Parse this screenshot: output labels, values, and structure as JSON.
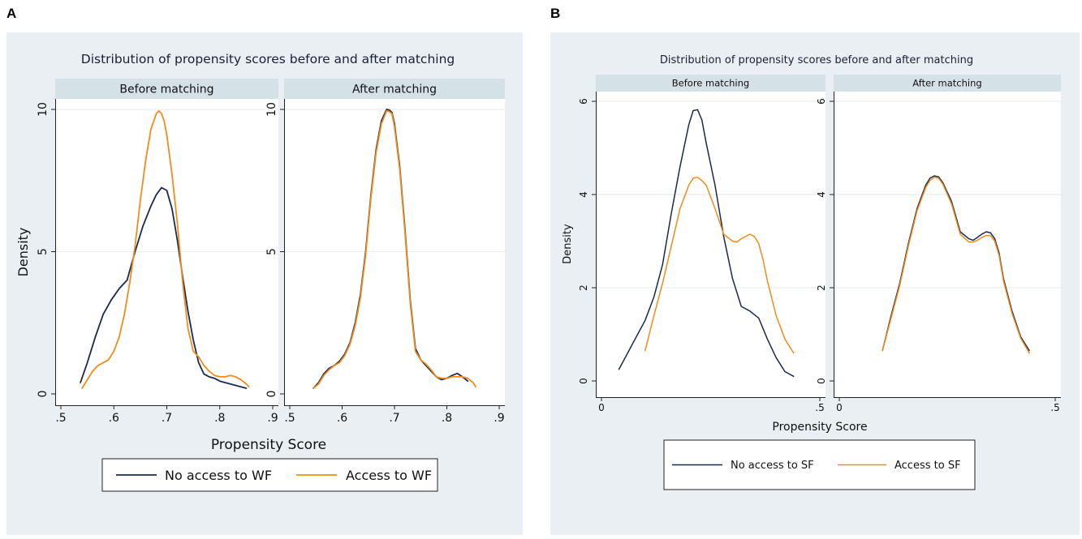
{
  "colors": {
    "blue": "#1a2a4f",
    "orange": "#f08c1c",
    "bg": "#e9eff2",
    "strip": "#d4e1e7",
    "grid": "#ffffff"
  },
  "chart_data": [
    {
      "panel_label": "A",
      "type": "line",
      "title": "Distribution of propensity scores before and after matching",
      "xlabel": "Propensity Score",
      "ylabel": "Density",
      "xlim": [
        0.5,
        0.9
      ],
      "ylim": [
        0,
        10
      ],
      "xticks": [
        0.5,
        0.6,
        0.7,
        0.8,
        0.9
      ],
      "xtick_labels": [
        ".5",
        ".6",
        ".7",
        ".8",
        ".9"
      ],
      "yticks": [
        0,
        5,
        10
      ],
      "ytick_labels": [
        "0",
        "5",
        "10"
      ],
      "legend": [
        "No access to WF",
        "Access to WF"
      ],
      "facets": [
        {
          "label": "Before matching",
          "series": [
            {
              "name": "No access to WF",
              "color": "#1a2a4f",
              "x": [
                0.537,
                0.55,
                0.565,
                0.58,
                0.595,
                0.61,
                0.625,
                0.64,
                0.655,
                0.67,
                0.68,
                0.69,
                0.7,
                0.71,
                0.72,
                0.73,
                0.74,
                0.75,
                0.76,
                0.77,
                0.78,
                0.79,
                0.8,
                0.81,
                0.82,
                0.83,
                0.84,
                0.85
              ],
              "y": [
                0.4,
                1.1,
                2.0,
                2.8,
                3.3,
                3.7,
                4.0,
                5.0,
                5.9,
                6.6,
                7.0,
                7.25,
                7.15,
                6.5,
                5.4,
                4.1,
                2.9,
                1.9,
                1.1,
                0.7,
                0.6,
                0.55,
                0.45,
                0.4,
                0.35,
                0.3,
                0.25,
                0.2
              ]
            },
            {
              "name": "Access to WF",
              "color": "#f08c1c",
              "x": [
                0.54,
                0.55,
                0.56,
                0.57,
                0.58,
                0.59,
                0.6,
                0.61,
                0.62,
                0.63,
                0.64,
                0.65,
                0.66,
                0.67,
                0.68,
                0.685,
                0.69,
                0.695,
                0.7,
                0.71,
                0.72,
                0.73,
                0.74,
                0.75,
                0.76,
                0.77,
                0.78,
                0.79,
                0.8,
                0.81,
                0.82,
                0.83,
                0.84,
                0.85,
                0.855
              ],
              "y": [
                0.2,
                0.5,
                0.8,
                1.0,
                1.1,
                1.2,
                1.5,
                2.0,
                2.8,
                3.9,
                5.2,
                6.8,
                8.2,
                9.3,
                9.85,
                9.95,
                9.85,
                9.6,
                9.1,
                7.7,
                6.0,
                3.9,
                2.3,
                1.5,
                1.3,
                1.0,
                0.8,
                0.65,
                0.6,
                0.6,
                0.65,
                0.6,
                0.5,
                0.35,
                0.25
              ]
            }
          ]
        },
        {
          "label": "After matching",
          "series": [
            {
              "name": "No access to WF",
              "color": "#1a2a4f",
              "x": [
                0.545,
                0.555,
                0.565,
                0.575,
                0.585,
                0.595,
                0.605,
                0.615,
                0.625,
                0.635,
                0.645,
                0.655,
                0.665,
                0.675,
                0.685,
                0.69,
                0.695,
                0.7,
                0.71,
                0.72,
                0.73,
                0.74,
                0.75,
                0.76,
                0.77,
                0.78,
                0.79,
                0.8,
                0.81,
                0.82,
                0.83,
                0.84
              ],
              "y": [
                0.2,
                0.4,
                0.7,
                0.9,
                1.0,
                1.15,
                1.4,
                1.8,
                2.5,
                3.5,
                5.0,
                7.0,
                8.6,
                9.6,
                10.0,
                9.98,
                9.9,
                9.5,
                8.0,
                5.8,
                3.3,
                1.6,
                1.2,
                1.0,
                0.8,
                0.6,
                0.5,
                0.55,
                0.65,
                0.72,
                0.6,
                0.45
              ]
            },
            {
              "name": "Access to WF",
              "color": "#f08c1c",
              "x": [
                0.545,
                0.555,
                0.565,
                0.575,
                0.585,
                0.595,
                0.605,
                0.615,
                0.625,
                0.635,
                0.645,
                0.655,
                0.665,
                0.675,
                0.685,
                0.69,
                0.695,
                0.7,
                0.71,
                0.72,
                0.73,
                0.74,
                0.75,
                0.76,
                0.77,
                0.78,
                0.79,
                0.8,
                0.81,
                0.82,
                0.83,
                0.84,
                0.85,
                0.855
              ],
              "y": [
                0.2,
                0.35,
                0.65,
                0.85,
                1.0,
                1.1,
                1.35,
                1.75,
                2.4,
                3.4,
                4.9,
                6.9,
                8.5,
                9.5,
                9.95,
                9.93,
                9.85,
                9.4,
                7.9,
                5.7,
                3.2,
                1.5,
                1.2,
                1.05,
                0.85,
                0.6,
                0.55,
                0.55,
                0.6,
                0.6,
                0.6,
                0.55,
                0.4,
                0.25
              ]
            }
          ]
        }
      ]
    },
    {
      "panel_label": "B",
      "type": "line",
      "title": "Distribution of propensity scores before and after matching",
      "xlabel": "Propensity Score",
      "ylabel": "Density",
      "xlim": [
        0,
        0.5
      ],
      "ylim": [
        0,
        6
      ],
      "xticks": [
        0,
        0.5
      ],
      "xtick_labels": [
        "0",
        ".5"
      ],
      "yticks": [
        0,
        2,
        4,
        6
      ],
      "ytick_labels": [
        "0",
        "2",
        "4",
        "6"
      ],
      "legend": [
        "No access to SF",
        "Access to SF"
      ],
      "facets": [
        {
          "label": "Before matching",
          "series": [
            {
              "name": "No access to SF",
              "color": "#1a2a4f",
              "x": [
                0.04,
                0.06,
                0.08,
                0.1,
                0.12,
                0.14,
                0.16,
                0.18,
                0.2,
                0.21,
                0.22,
                0.23,
                0.24,
                0.26,
                0.28,
                0.3,
                0.32,
                0.34,
                0.36,
                0.38,
                0.4,
                0.42,
                0.44
              ],
              "y": [
                0.25,
                0.6,
                0.95,
                1.3,
                1.8,
                2.5,
                3.6,
                4.6,
                5.5,
                5.8,
                5.82,
                5.6,
                5.1,
                4.2,
                3.1,
                2.2,
                1.6,
                1.5,
                1.35,
                0.9,
                0.5,
                0.2,
                0.1
              ]
            },
            {
              "name": "Access to SF",
              "color": "#f08c1c",
              "x": [
                0.1,
                0.12,
                0.14,
                0.16,
                0.18,
                0.2,
                0.21,
                0.22,
                0.23,
                0.24,
                0.26,
                0.28,
                0.3,
                0.31,
                0.32,
                0.33,
                0.34,
                0.35,
                0.36,
                0.37,
                0.38,
                0.4,
                0.42,
                0.44
              ],
              "y": [
                0.65,
                1.4,
                2.1,
                2.9,
                3.7,
                4.2,
                4.35,
                4.37,
                4.3,
                4.2,
                3.7,
                3.15,
                3.0,
                2.98,
                3.05,
                3.1,
                3.15,
                3.1,
                2.95,
                2.6,
                2.15,
                1.4,
                0.9,
                0.6
              ]
            }
          ]
        },
        {
          "label": "After matching",
          "series": [
            {
              "name": "No access to SF",
              "color": "#1a2a4f",
              "x": [
                0.1,
                0.12,
                0.14,
                0.16,
                0.18,
                0.2,
                0.21,
                0.22,
                0.23,
                0.24,
                0.26,
                0.28,
                0.3,
                0.31,
                0.32,
                0.33,
                0.34,
                0.35,
                0.36,
                0.37,
                0.38,
                0.4,
                0.42,
                0.44
              ],
              "y": [
                0.65,
                1.4,
                2.1,
                2.95,
                3.7,
                4.2,
                4.35,
                4.4,
                4.38,
                4.25,
                3.85,
                3.2,
                3.05,
                3.02,
                3.08,
                3.15,
                3.2,
                3.18,
                3.05,
                2.75,
                2.2,
                1.5,
                0.95,
                0.65
              ]
            },
            {
              "name": "Access to SF",
              "color": "#f08c1c",
              "x": [
                0.1,
                0.12,
                0.14,
                0.16,
                0.18,
                0.2,
                0.21,
                0.22,
                0.23,
                0.24,
                0.26,
                0.28,
                0.3,
                0.31,
                0.32,
                0.33,
                0.34,
                0.35,
                0.36,
                0.37,
                0.38,
                0.4,
                0.42,
                0.44
              ],
              "y": [
                0.65,
                1.35,
                2.05,
                2.9,
                3.65,
                4.15,
                4.3,
                4.37,
                4.35,
                4.22,
                3.8,
                3.15,
                2.98,
                2.98,
                3.02,
                3.08,
                3.12,
                3.12,
                3.0,
                2.7,
                2.15,
                1.45,
                0.92,
                0.6
              ]
            }
          ]
        }
      ]
    }
  ]
}
